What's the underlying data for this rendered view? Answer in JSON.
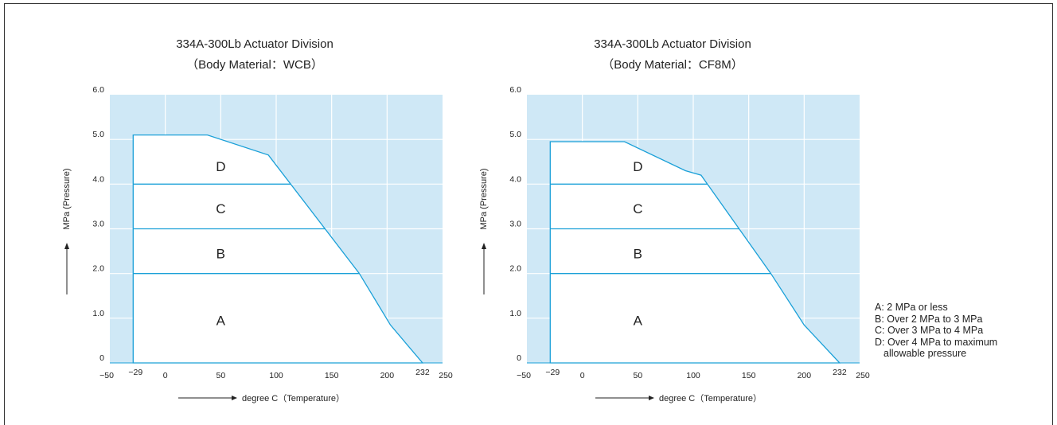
{
  "chart_data": [
    {
      "type": "area",
      "title": "334A-300Lb  Actuator Division",
      "subtitle": "（Body Material：WCB）",
      "xlabel": "degree C（Temperature）",
      "ylabel": "MPa (Pressure)",
      "xlim": [
        -50,
        250
      ],
      "ylim": [
        0,
        6
      ],
      "x_ticks": [
        "−50",
        "−29",
        "0",
        "50",
        "100",
        "150",
        "200",
        "232",
        "250"
      ],
      "x_tick_values": [
        -50,
        -29,
        0,
        50,
        100,
        150,
        200,
        232,
        250
      ],
      "y_ticks": [
        "0",
        "1.0",
        "2.0",
        "3.0",
        "4.0",
        "5.0",
        "6.0"
      ],
      "y_tick_values": [
        0,
        1,
        2,
        3,
        4,
        5,
        6
      ],
      "envelope": [
        {
          "x": -29,
          "y": 0
        },
        {
          "x": -29,
          "y": 5.1
        },
        {
          "x": 38,
          "y": 5.1
        },
        {
          "x": 93,
          "y": 4.65
        },
        {
          "x": 175,
          "y": 2.0
        },
        {
          "x": 203,
          "y": 0.85
        },
        {
          "x": 232,
          "y": 0
        }
      ],
      "zone_lines": [
        2,
        3,
        4
      ],
      "zones": [
        {
          "label": "A",
          "x": 50,
          "y": 0.95
        },
        {
          "label": "B",
          "x": 50,
          "y": 2.45
        },
        {
          "label": "C",
          "x": 50,
          "y": 3.45
        },
        {
          "label": "D",
          "x": 50,
          "y": 4.4
        }
      ],
      "grid": true
    },
    {
      "type": "area",
      "title": "334A-300Lb  Actuator Division",
      "subtitle": "（Body Material：CF8M）",
      "xlabel": "degree C（Temperature）",
      "ylabel": "MPa (Pressure)",
      "xlim": [
        -50,
        250
      ],
      "ylim": [
        0,
        6
      ],
      "x_ticks": [
        "−50",
        "−29",
        "0",
        "50",
        "100",
        "150",
        "200",
        "232",
        "250"
      ],
      "x_tick_values": [
        -50,
        -29,
        0,
        50,
        100,
        150,
        200,
        232,
        250
      ],
      "y_ticks": [
        "0",
        "1.0",
        "2.0",
        "3.0",
        "4.0",
        "5.0",
        "6.0"
      ],
      "y_tick_values": [
        0,
        1,
        2,
        3,
        4,
        5,
        6
      ],
      "envelope": [
        {
          "x": -29,
          "y": 0
        },
        {
          "x": -29,
          "y": 4.95
        },
        {
          "x": 38,
          "y": 4.95
        },
        {
          "x": 93,
          "y": 4.3
        },
        {
          "x": 107,
          "y": 4.2
        },
        {
          "x": 170,
          "y": 2.0
        },
        {
          "x": 200,
          "y": 0.85
        },
        {
          "x": 232,
          "y": 0
        }
      ],
      "zone_lines": [
        2,
        3,
        4
      ],
      "zones": [
        {
          "label": "A",
          "x": 50,
          "y": 0.95
        },
        {
          "label": "B",
          "x": 50,
          "y": 2.45
        },
        {
          "label": "C",
          "x": 50,
          "y": 3.45
        },
        {
          "label": "D",
          "x": 50,
          "y": 4.4
        }
      ],
      "grid": true
    }
  ],
  "colors": {
    "plot_bg": "#cfe8f6",
    "grid": "#ffffff",
    "line": "#1aa0d8",
    "axis": "#222222"
  },
  "legend": [
    "A: 2 MPa or less",
    "B: Over 2 MPa to 3 MPa",
    "C: Over 3 MPa to 4 MPa",
    "D: Over 4 MPa to maximum",
    "allowable pressure"
  ]
}
